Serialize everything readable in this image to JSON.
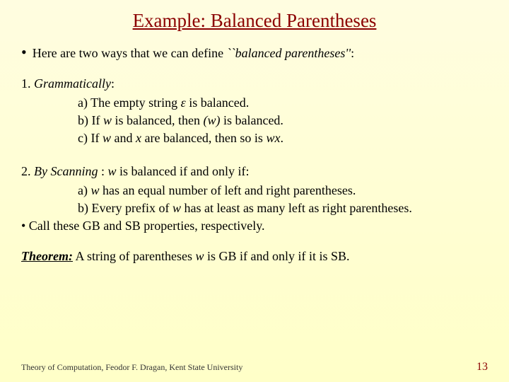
{
  "title": "Example: Balanced Parentheses",
  "intro_prefix": "Here are two ways that we can define ",
  "intro_italic": "``balanced parentheses''",
  "intro_suffix": ":",
  "sec1_prefix": "1. ",
  "sec1_italic": "Grammatically",
  "sec1_suffix": ":",
  "s1a_pre": "a) The empty string ",
  "s1a_eps": "ε",
  "s1a_post": "  is balanced.",
  "s1b_pre": "b) If ",
  "s1b_w": "w",
  "s1b_mid": " is balanced, then ",
  "s1b_pw": "(w)",
  "s1b_post": " is balanced.",
  "s1c_pre": "c) If ",
  "s1c_w": "w",
  "s1c_and": " and ",
  "s1c_x": "x",
  "s1c_mid": " are balanced, then so is ",
  "s1c_wx": "wx",
  "s1c_post": ".",
  "sec2_prefix": "2. ",
  "sec2_italic": "By Scanning ",
  "sec2_mid": ": ",
  "sec2_w": "w",
  "sec2_suffix": " is balanced if and only if:",
  "s2a_pre": "a) ",
  "s2a_w": "w",
  "s2a_post": " has an equal number of left and right parentheses.",
  "s2b_pre": "b) Every prefix of ",
  "s2b_w": "w",
  "s2b_post": " has at least as many left as right parentheses.",
  "call": "• Call these GB and SB properties, respectively.",
  "thm_label": "Theorem:",
  "thm_pre": " A string of parentheses ",
  "thm_w": "w",
  "thm_post": " is GB if and only if it is SB.",
  "footer": "Theory of Computation, Feodor F. Dragan, Kent State University",
  "page": "13",
  "colors": {
    "title": "#8b0000",
    "page": "#8b0000",
    "bg_top": "#fffde0",
    "bg_bottom": "#ffffc8"
  }
}
